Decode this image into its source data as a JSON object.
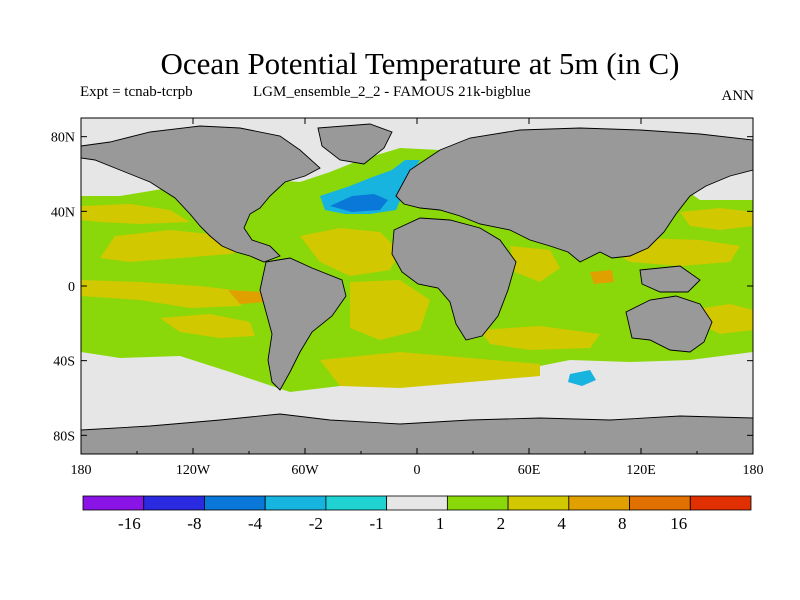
{
  "title": "Ocean Potential Temperature at 5m (in C)",
  "experiment": "Expt = tcnab-tcrpb",
  "run": "LGM_ensemble_2_2 - FAMOUS 21k-bigblue",
  "season": "ANN",
  "x_ticks": [
    "180",
    "120W",
    "60W",
    "0",
    "60E",
    "120E",
    "180"
  ],
  "y_ticks": [
    "80N",
    "40N",
    "0",
    "40S",
    "80S"
  ],
  "colorbar": {
    "labels": [
      "-16",
      "-8",
      "-4",
      "-2",
      "-1",
      "1",
      "2",
      "4",
      "8",
      "16"
    ],
    "colors": [
      "#8a14e6",
      "#2a2ae0",
      "#0a78d8",
      "#18b4e0",
      "#20d2d2",
      "#e6e6e6",
      "#8ad80a",
      "#d2c800",
      "#e0a000",
      "#e07000",
      "#e03000"
    ]
  },
  "colors": {
    "land": "#999999",
    "ice": "#e6e6e6",
    "green": "#8ad80a",
    "yellow": "#d2c800",
    "orange": "#e0a000",
    "cyan": "#18b4e0",
    "blue": "#0a78d8"
  }
}
